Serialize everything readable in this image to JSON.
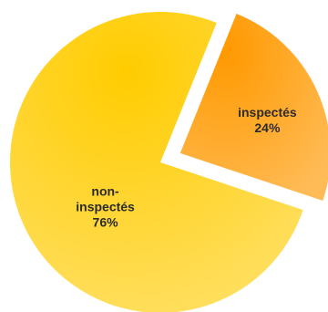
{
  "chart_data": {
    "type": "pie",
    "slices": [
      {
        "label_lines": [
          "inspectés",
          "24%"
        ],
        "value": 24,
        "color_start": "#ff9900",
        "color_end": "#ffbb55",
        "exploded": true
      },
      {
        "label_lines": [
          "non-",
          "inspectés",
          "76%"
        ],
        "value": 76,
        "color_start": "#ffcc00",
        "color_end": "#ffe066",
        "exploded": false
      }
    ],
    "legend": "none"
  }
}
